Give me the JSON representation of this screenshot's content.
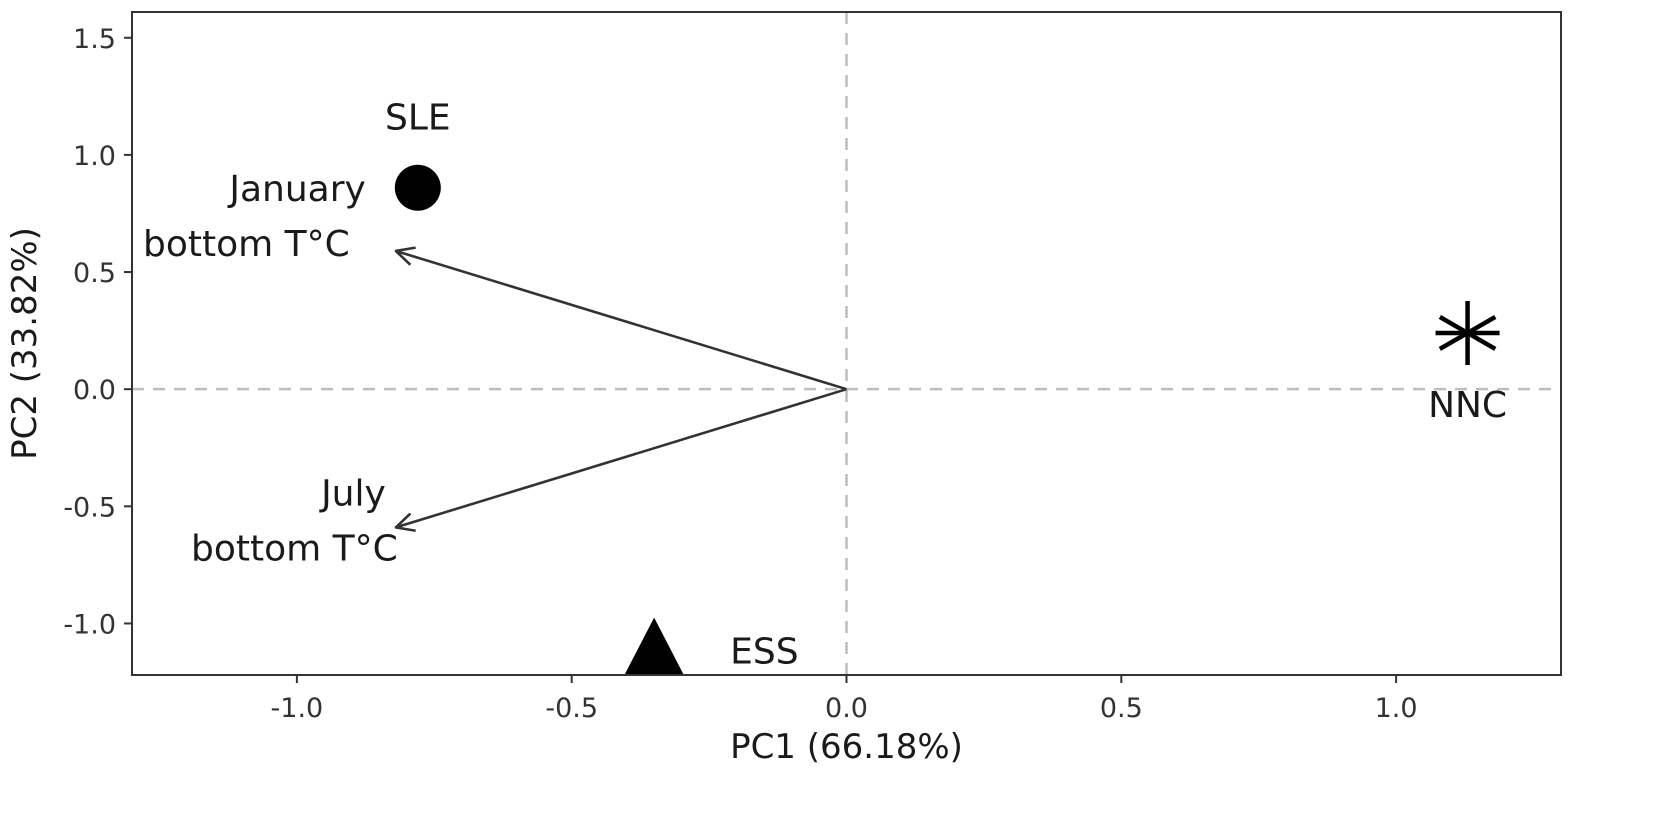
{
  "chart_data": {
    "type": "scatter",
    "title": "",
    "xlabel": "PC1 (66.18%)",
    "ylabel": "PC2 (33.82%)",
    "xlim": [
      -1.3,
      1.3
    ],
    "ylim": [
      -1.22,
      1.61
    ],
    "x_ticks": [
      -1.0,
      -0.5,
      0.0,
      0.5,
      1.0
    ],
    "x_tick_labels": [
      "-1.0",
      "-0.5",
      "0.0",
      "0.5",
      "1.0"
    ],
    "y_ticks": [
      1.5,
      1.0,
      0.5,
      0.0,
      -0.5,
      -1.0
    ],
    "y_tick_labels": [
      "1.5",
      "1.0",
      "0.5",
      "0.0",
      "-0.5",
      "-1.0"
    ],
    "grid": false,
    "reference_lines": {
      "x": 0,
      "y": 0
    },
    "points": [
      {
        "label": "SLE",
        "x": -0.78,
        "y": 0.86,
        "marker": "circle"
      },
      {
        "label": "NNC",
        "x": 1.13,
        "y": 0.24,
        "marker": "asterisk"
      },
      {
        "label": "ESS",
        "x": -0.35,
        "y": -1.12,
        "marker": "triangle"
      }
    ],
    "vectors": [
      {
        "label_lines": [
          "January",
          "bottom T°C"
        ],
        "x": -0.82,
        "y": 0.59
      },
      {
        "label_lines": [
          "July",
          "bottom T°C"
        ],
        "x": -0.82,
        "y": -0.59
      }
    ]
  }
}
